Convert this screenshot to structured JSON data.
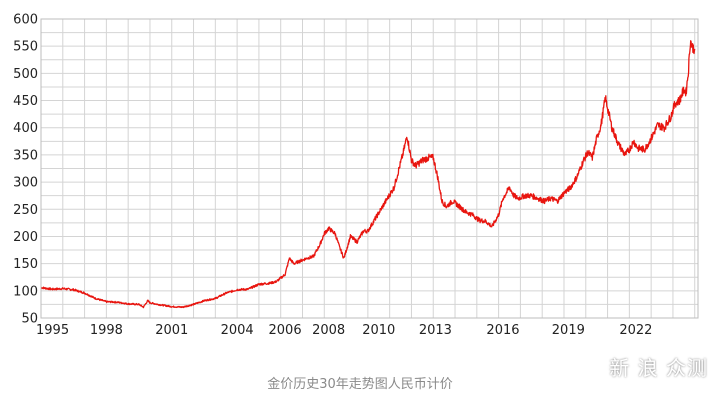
{
  "chart_data": {
    "type": "line",
    "title": "",
    "xlabel": "",
    "ylabel": "",
    "xlim": [
      1995,
      2025.15
    ],
    "ylim": [
      50,
      600
    ],
    "grid": true,
    "x_ticks": [
      "1995",
      "1998",
      "2001",
      "2004",
      "2006",
      "2008",
      "2010",
      "2013",
      "2016",
      "2019",
      "2022"
    ],
    "x_tick_values": [
      1995,
      1998,
      2001,
      2004,
      2006.2,
      2008.2,
      2010.5,
      2013.1,
      2016.2,
      2019.2,
      2022.3
    ],
    "y_ticks": [
      50,
      100,
      150,
      200,
      250,
      300,
      350,
      400,
      450,
      500,
      550,
      600
    ],
    "line_color": "#e8150f",
    "series": [
      {
        "name": "",
        "x": [
          1995.0,
          1995.5,
          1996.0,
          1996.5,
          1997.0,
          1997.5,
          1998.0,
          1998.5,
          1999.0,
          1999.5,
          1999.7,
          1999.9,
          2000.0,
          2000.5,
          2001.0,
          2001.5,
          2002.0,
          2002.5,
          2003.0,
          2003.5,
          2004.0,
          2004.5,
          2005.0,
          2005.5,
          2005.8,
          2006.2,
          2006.4,
          2006.6,
          2006.9,
          2007.2,
          2007.5,
          2007.8,
          2008.0,
          2008.2,
          2008.5,
          2008.7,
          2008.9,
          2009.2,
          2009.5,
          2009.8,
          2010.0,
          2010.3,
          2010.6,
          2010.9,
          2011.2,
          2011.4,
          2011.6,
          2011.8,
          2012.0,
          2012.2,
          2012.5,
          2012.8,
          2013.0,
          2013.2,
          2013.4,
          2013.6,
          2013.9,
          2014.2,
          2014.5,
          2014.8,
          2015.1,
          2015.4,
          2015.7,
          2016.0,
          2016.2,
          2016.5,
          2016.7,
          2016.9,
          2017.2,
          2017.5,
          2017.8,
          2018.1,
          2018.4,
          2018.7,
          2019.0,
          2019.3,
          2019.6,
          2019.9,
          2020.1,
          2020.3,
          2020.5,
          2020.7,
          2020.9,
          2021.2,
          2021.5,
          2021.8,
          2022.0,
          2022.2,
          2022.4,
          2022.7,
          2023.0,
          2023.3,
          2023.6,
          2023.9,
          2024.1,
          2024.3,
          2024.5,
          2024.6,
          2024.7,
          2024.8,
          2024.9,
          2025.0
        ],
        "y": [
          106,
          103,
          104,
          102,
          96,
          86,
          80,
          79,
          76,
          75,
          70,
          82,
          78,
          74,
          71,
          70,
          75,
          82,
          86,
          96,
          102,
          103,
          112,
          114,
          117,
          130,
          160,
          150,
          155,
          160,
          163,
          185,
          205,
          215,
          205,
          180,
          160,
          200,
          190,
          210,
          210,
          230,
          250,
          270,
          290,
          320,
          350,
          385,
          340,
          330,
          340,
          345,
          345,
          310,
          265,
          255,
          265,
          255,
          245,
          240,
          230,
          228,
          218,
          240,
          270,
          290,
          275,
          270,
          275,
          275,
          270,
          265,
          270,
          265,
          280,
          290,
          310,
          340,
          355,
          345,
          380,
          405,
          455,
          400,
          370,
          350,
          360,
          375,
          362,
          360,
          380,
          405,
          400,
          420,
          445,
          450,
          470,
          465,
          500,
          560,
          548,
          545
        ]
      }
    ]
  },
  "caption": "金价历史30年走势图人民币计价",
  "watermark": "新 浪 众测"
}
